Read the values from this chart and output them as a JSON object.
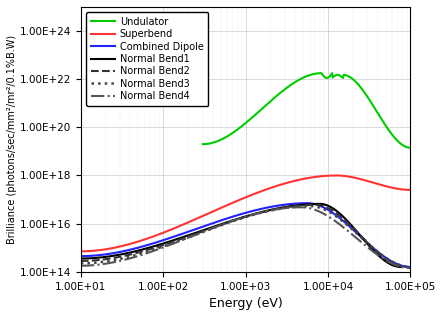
{
  "title": "",
  "xlabel": "Energy (eV)",
  "ylabel": "Brilliance (photons/sec/mm²/mr²/0.1%B.W)",
  "xlim": [
    10,
    100000
  ],
  "ylim_exp": [
    14,
    25
  ],
  "background_color": "#ffffff",
  "lines": [
    {
      "label": "Undulator",
      "color": "#00cc00",
      "linestyle": "-",
      "linewidth": 1.5,
      "type": "undulator"
    },
    {
      "label": "Superbend",
      "color": "#ff3333",
      "linestyle": "-",
      "linewidth": 1.5,
      "type": "bend",
      "start_log_x": 1.0,
      "peak_log_x": 4.1,
      "peak_log_y": 18.0,
      "start_log_y": 14.85,
      "end_log_x": 5.0,
      "end_log_y": 17.4
    },
    {
      "label": "Combined Dipole",
      "color": "#2222ff",
      "linestyle": "-",
      "linewidth": 1.5,
      "type": "bend",
      "start_log_x": 1.0,
      "peak_log_x": 3.75,
      "peak_log_y": 16.85,
      "start_log_y": 14.65,
      "end_log_x": 5.0,
      "end_log_y": 14.2
    },
    {
      "label": "Normal Bend1",
      "color": "#000000",
      "linestyle": "-",
      "linewidth": 1.5,
      "type": "bend",
      "start_log_x": 1.0,
      "peak_log_x": 3.9,
      "peak_log_y": 16.82,
      "start_log_y": 14.55,
      "end_log_x": 4.88,
      "end_log_y": 14.2
    },
    {
      "label": "Normal Bend2",
      "color": "#333333",
      "linestyle": "--",
      "linewidth": 1.5,
      "type": "bend",
      "start_log_x": 1.0,
      "peak_log_x": 3.85,
      "peak_log_y": 16.78,
      "start_log_y": 14.45,
      "end_log_x": 4.95,
      "end_log_y": 14.2
    },
    {
      "label": "Normal Bend3",
      "color": "#444444",
      "linestyle": ":",
      "linewidth": 1.8,
      "type": "bend",
      "start_log_x": 1.0,
      "peak_log_x": 3.78,
      "peak_log_y": 16.73,
      "start_log_y": 14.35,
      "end_log_x": 5.0,
      "end_log_y": 14.2
    },
    {
      "label": "Normal Bend4",
      "color": "#555555",
      "linestyle": "-.",
      "linewidth": 1.5,
      "type": "bend",
      "start_log_x": 1.0,
      "peak_log_x": 3.68,
      "peak_log_y": 16.68,
      "start_log_y": 14.25,
      "end_log_x": 5.0,
      "end_log_y": 14.15
    }
  ]
}
